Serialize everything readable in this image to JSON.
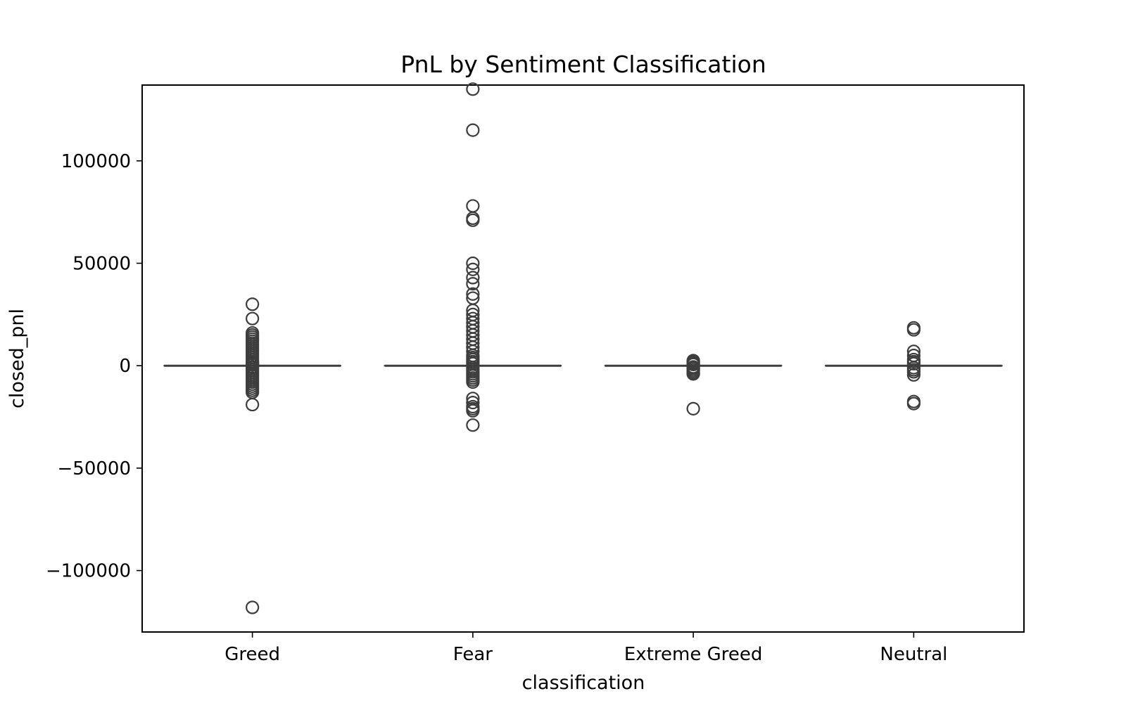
{
  "chart_data": {
    "type": "box",
    "title": "PnL by Sentiment Classification",
    "xlabel": "classification",
    "ylabel": "closed_pnl",
    "categories": [
      "Greed",
      "Fear",
      "Extreme Greed",
      "Neutral"
    ],
    "ylim": [
      -130000,
      137000
    ],
    "yticks": [
      {
        "value": -100000,
        "label": "−100000"
      },
      {
        "value": -50000,
        "label": "−50000"
      },
      {
        "value": 0,
        "label": "0"
      },
      {
        "value": 50000,
        "label": "50000"
      },
      {
        "value": 100000,
        "label": "100000"
      }
    ],
    "grid": false,
    "line_color": "#3d3d3d",
    "boxes": [
      {
        "category": "Greed",
        "q1": 0,
        "median": 0,
        "q3": 0,
        "whisker_low": 0,
        "whisker_high": 0,
        "outliers": [
          30000,
          23000,
          16000,
          15000,
          14000,
          13000,
          12000,
          11000,
          10000,
          9000,
          8000,
          7000,
          6000,
          5000,
          4000,
          3000,
          2000,
          1500,
          1000,
          500,
          -500,
          -1000,
          -2000,
          -3000,
          -4000,
          -5000,
          -6000,
          -7000,
          -8000,
          -9000,
          -10000,
          -11000,
          -12000,
          -13000,
          -19000,
          -118000
        ]
      },
      {
        "category": "Fear",
        "q1": 0,
        "median": 0,
        "q3": 0,
        "whisker_low": 0,
        "whisker_high": 0,
        "outliers": [
          135000,
          115000,
          78000,
          72000,
          71000,
          50000,
          47000,
          43000,
          40000,
          35000,
          33000,
          27000,
          25000,
          23000,
          21000,
          19000,
          17000,
          15000,
          13000,
          11000,
          9000,
          7000,
          5000,
          4000,
          3000,
          2000,
          1000,
          -1000,
          -2000,
          -3000,
          -4000,
          -5000,
          -6000,
          -7000,
          -8000,
          -16000,
          -18000,
          -20000,
          -21000,
          -22000,
          -29000
        ]
      },
      {
        "category": "Extreme Greed",
        "q1": 0,
        "median": 0,
        "q3": 0,
        "whisker_low": 0,
        "whisker_high": 0,
        "outliers": [
          2500,
          1800,
          1200,
          600,
          -600,
          -1200,
          -2000,
          -2800,
          -3600,
          -4000,
          -21000
        ]
      },
      {
        "category": "Neutral",
        "q1": 0,
        "median": 0,
        "q3": 0,
        "whisker_low": 0,
        "whisker_high": 0,
        "outliers": [
          18500,
          17500,
          7000,
          5000,
          3000,
          2000,
          1000,
          -1000,
          -2000,
          -3000,
          -4500,
          -17500,
          -18500
        ]
      }
    ]
  }
}
